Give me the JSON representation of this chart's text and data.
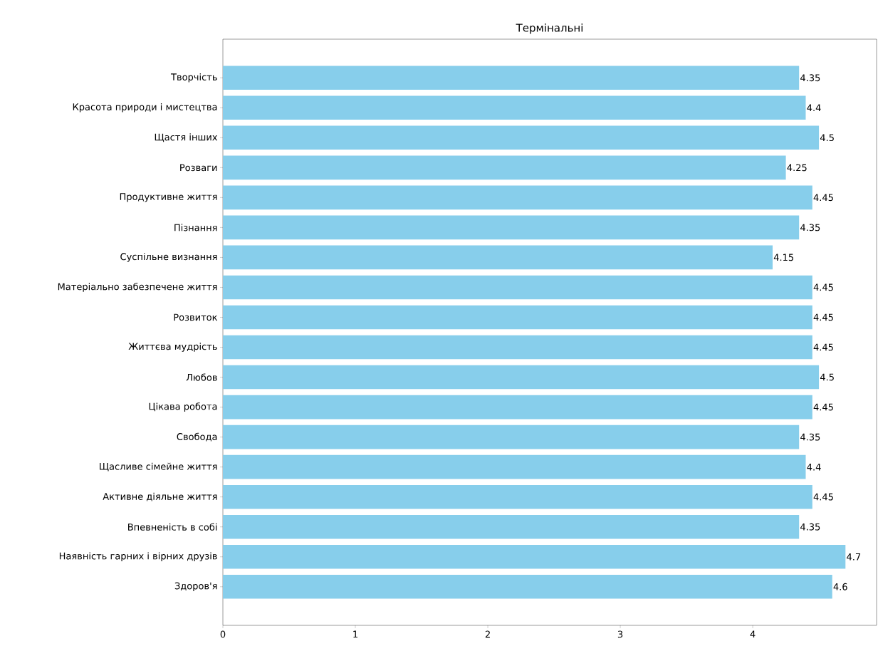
{
  "chart_data": {
    "type": "bar",
    "orientation": "horizontal",
    "title": "Термінальні",
    "categories": [
      "Творчість",
      "Красота природи і мистецтва",
      "Щастя інших",
      "Розваги",
      "Продуктивне життя",
      "Пізнання",
      "Суспільне визнання",
      "Матеріально забезпечене життя",
      "Розвиток",
      "Життєва мудрість",
      "Любов",
      "Цікава робота",
      "Свобода",
      "Щасливе сімейне життя",
      "Активне діяльне життя",
      "Впевненість в собі",
      "Наявність гарних і вірних друзів",
      "Здоров'я"
    ],
    "values": [
      4.35,
      4.4,
      4.5,
      4.25,
      4.45,
      4.35,
      4.15,
      4.45,
      4.45,
      4.45,
      4.5,
      4.45,
      4.35,
      4.4,
      4.45,
      4.35,
      4.7,
      4.6
    ],
    "color": "#87ceeb",
    "data_labels": true,
    "xlim": [
      0,
      4.935
    ],
    "xticks": [
      0,
      1,
      2,
      3,
      4
    ]
  }
}
